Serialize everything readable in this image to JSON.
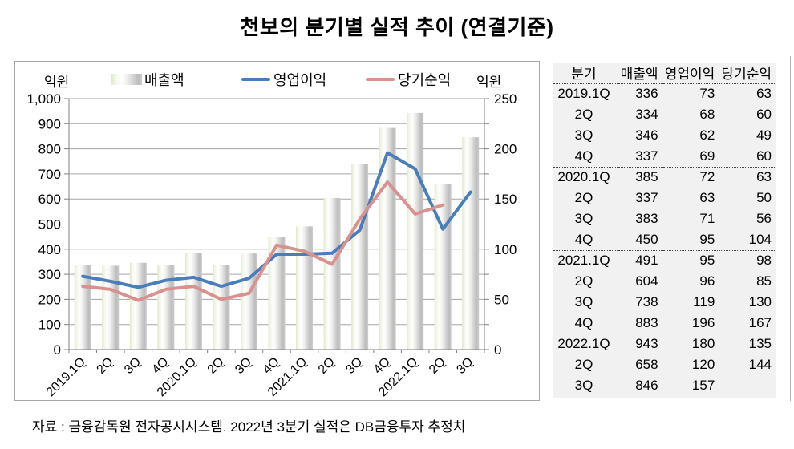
{
  "title": "천보의 분기별 실적 추이 (연결기준)",
  "footer": "자료 : 금융감독원 전자공시시스템. 2022년 3분기 실적은 DB금융투자 추정치",
  "chart": {
    "left_axis_unit": "억원",
    "right_axis_unit": "억원",
    "legend": [
      {
        "label": "매출액",
        "type": "bar"
      },
      {
        "label": "영업이익",
        "type": "line",
        "color": "#4a7ebb"
      },
      {
        "label": "당기순익",
        "type": "line",
        "color": "#d9918f"
      }
    ]
  },
  "chart_data": {
    "type": "bar",
    "title": "천보의 분기별 실적 추이 (연결기준)",
    "categories": [
      "2019.1Q",
      "2Q",
      "3Q",
      "4Q",
      "2020.1Q",
      "2Q",
      "3Q",
      "4Q",
      "2021.1Q",
      "2Q",
      "3Q",
      "4Q",
      "2022.1Q",
      "2Q",
      "3Q"
    ],
    "series": [
      {
        "name": "매출액",
        "type": "bar",
        "axis": "left",
        "values": [
          336,
          334,
          346,
          337,
          385,
          337,
          383,
          450,
          491,
          604,
          738,
          883,
          943,
          658,
          846
        ]
      },
      {
        "name": "영업이익",
        "type": "line",
        "axis": "right",
        "color": "#4a7ebb",
        "values": [
          73,
          68,
          62,
          69,
          72,
          63,
          71,
          95,
          95,
          96,
          119,
          196,
          180,
          120,
          157
        ]
      },
      {
        "name": "당기순익",
        "type": "line",
        "axis": "right",
        "color": "#d9918f",
        "values": [
          63,
          60,
          49,
          60,
          63,
          50,
          56,
          104,
          98,
          85,
          130,
          167,
          135,
          144,
          null
        ]
      }
    ],
    "ylabel": "억원",
    "y2label": "억원",
    "left_ylim": [
      0,
      1000
    ],
    "right_ylim": [
      0,
      250
    ],
    "y_ticks": [
      "1,000",
      "900",
      "800",
      "700",
      "600",
      "500",
      "400",
      "300",
      "200",
      "100",
      "0"
    ],
    "y2_ticks": [
      "250",
      "200",
      "150",
      "100",
      "50",
      "0"
    ],
    "grid": true,
    "legend_position": "top"
  },
  "table": {
    "headers": [
      "분기",
      "매출액",
      "영업이익",
      "당기순익"
    ],
    "rows": [
      {
        "cells": [
          "2019.1Q",
          "336",
          "73",
          "63"
        ],
        "separator_before": false
      },
      {
        "cells": [
          "2Q",
          "334",
          "68",
          "60"
        ],
        "separator_before": false
      },
      {
        "cells": [
          "3Q",
          "346",
          "62",
          "49"
        ],
        "separator_before": false
      },
      {
        "cells": [
          "4Q",
          "337",
          "69",
          "60"
        ],
        "separator_before": false
      },
      {
        "cells": [
          "2020.1Q",
          "385",
          "72",
          "63"
        ],
        "separator_before": true
      },
      {
        "cells": [
          "2Q",
          "337",
          "63",
          "50"
        ],
        "separator_before": false
      },
      {
        "cells": [
          "3Q",
          "383",
          "71",
          "56"
        ],
        "separator_before": false
      },
      {
        "cells": [
          "4Q",
          "450",
          "95",
          "104"
        ],
        "separator_before": false
      },
      {
        "cells": [
          "2021.1Q",
          "491",
          "95",
          "98"
        ],
        "separator_before": true
      },
      {
        "cells": [
          "2Q",
          "604",
          "96",
          "85"
        ],
        "separator_before": false
      },
      {
        "cells": [
          "3Q",
          "738",
          "119",
          "130"
        ],
        "separator_before": false
      },
      {
        "cells": [
          "4Q",
          "883",
          "196",
          "167"
        ],
        "separator_before": false
      },
      {
        "cells": [
          "2022.1Q",
          "943",
          "180",
          "135"
        ],
        "separator_before": true
      },
      {
        "cells": [
          "2Q",
          "658",
          "120",
          "144"
        ],
        "separator_before": false
      },
      {
        "cells": [
          "3Q",
          "846",
          "157",
          ""
        ],
        "separator_before": false
      }
    ]
  },
  "colors": {
    "operating_profit_line": "#4a7ebb",
    "net_profit_line": "#d9918f",
    "bar_green_edge": "#dfe9cb",
    "bar_gray": "#bcbcbc",
    "grid": "#a6a6a6",
    "axis": "#7f7f7f",
    "table_bg": "#f1f1f1"
  }
}
